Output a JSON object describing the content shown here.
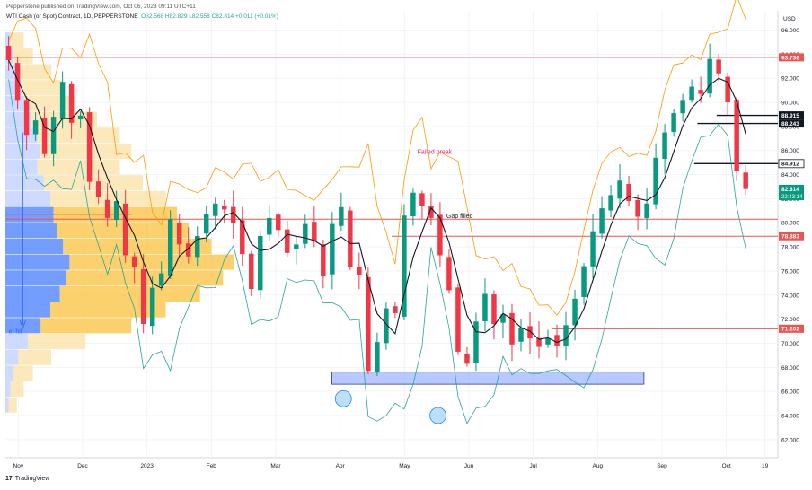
{
  "header": {
    "published": "Pepperstone published on TradingView.com, Oct 06, 2023 09:11 UTC+11",
    "symbol": "WTI Cash (or Spot) Contract, 1D, PEPPERSTONE",
    "ohlc": "O82.568 H82.829 L82.558 C82.814 +0.011 (+0.01%)"
  },
  "footer": {
    "brand": "TradingView",
    "logo_glyph": "17"
  },
  "chart_data": {
    "type": "candlestick",
    "currency": "USD",
    "y_ticks": [
      "96.000",
      "94.000",
      "92.000",
      "90.000",
      "88.000",
      "86.000",
      "84.000",
      "82.000",
      "80.000",
      "78.000",
      "76.000",
      "74.000",
      "72.000",
      "70.000",
      "68.000",
      "66.000",
      "64.000",
      "62.000"
    ],
    "ylim": [
      60.5,
      97.6
    ],
    "x_ticks": [
      {
        "label": "Nov",
        "t": 0.2
      },
      {
        "label": "Dec",
        "t": 1.2
      },
      {
        "label": "2023",
        "t": 2.2
      },
      {
        "label": "Feb",
        "t": 3.2
      },
      {
        "label": "Mar",
        "t": 4.2
      },
      {
        "label": "Apr",
        "t": 5.2
      },
      {
        "label": "May",
        "t": 6.2
      },
      {
        "label": "Jun",
        "t": 7.2
      },
      {
        "label": "Jul",
        "t": 8.2
      },
      {
        "label": "Aug",
        "t": 9.2
      },
      {
        "label": "Sep",
        "t": 10.2
      },
      {
        "label": "Oct",
        "t": 11.2
      },
      {
        "label": "19",
        "t": 11.8
      }
    ],
    "price_labels": [
      {
        "value": 93.736,
        "text": "93.736",
        "color": "#ef5350",
        "kind": "tag"
      },
      {
        "value": 88.915,
        "text": "88.915",
        "color": "#131722",
        "kind": "tag"
      },
      {
        "value": 88.243,
        "text": "88.243",
        "color": "#131722",
        "kind": "tag"
      },
      {
        "value": 84.912,
        "text": "84.912",
        "color": "#131722",
        "kind": "outline"
      },
      {
        "value": 82.814,
        "text": "82.814",
        "color": "#089981",
        "kind": "last",
        "countdown": "22:43:14"
      },
      {
        "value": 78.883,
        "text": "78.883",
        "color": "#ef5350",
        "kind": "tag"
      },
      {
        "value": 71.202,
        "text": "71.202",
        "color": "#ef5350",
        "kind": "tag"
      }
    ],
    "annotations": [
      {
        "text": "Failed break",
        "color": "#e91e63",
        "x": 6.4,
        "y": 85.7
      },
      {
        "text": "Gap filled",
        "color": "#131722",
        "x": 6.85,
        "y": 80.4
      },
      {
        "text": "et hit",
        "color": "#2962ff",
        "x": 0.05,
        "y": 70.8
      }
    ],
    "h_lines": [
      {
        "value": 93.736,
        "color": "#ef5350",
        "x_from": 0.0
      },
      {
        "value": 80.3,
        "color": "#ef5350",
        "x_from": 0.0
      },
      {
        "value": 78.883,
        "color": "#ef5350",
        "x_from": 6.0
      },
      {
        "value": 71.202,
        "color": "#ef5350",
        "x_from": 8.5
      },
      {
        "value": 88.915,
        "color": "#131722",
        "x_from": 11.05
      },
      {
        "value": 88.243,
        "color": "#131722",
        "x_from": 10.75
      },
      {
        "value": 84.912,
        "color": "#131722",
        "x_from": 10.7
      }
    ],
    "zone": {
      "x0": 5.07,
      "x1": 9.92,
      "y0": 66.6,
      "y1": 67.6,
      "color": "#7b9cff"
    },
    "circles": [
      {
        "x": 5.25,
        "y": 65.4
      },
      {
        "x": 6.72,
        "y": 64.0
      }
    ],
    "series": [
      {
        "name": "price",
        "closes": [
          93.5,
          90.2,
          87.3,
          88.5,
          85.7,
          88.8,
          91.7,
          88.3,
          88.9,
          83.4,
          82.1,
          80.4,
          81.8,
          77.3,
          76.3,
          71.6,
          74.6,
          75.8,
          80.3,
          78.2,
          77.2,
          78.9,
          80.7,
          81.6,
          81.1,
          80.0,
          77.4,
          74.5,
          78.9,
          80.4,
          79.4,
          77.5,
          78.2,
          79.9,
          78.5,
          75.6,
          79.9,
          81.3,
          76.3,
          75.7,
          67.7,
          70.1,
          72.9,
          72.5,
          80.6,
          82.5,
          81.4,
          80.4,
          77.3,
          74.4,
          69.3,
          68.3,
          71.8,
          74.1,
          71.6,
          72.4,
          69.9,
          71.3,
          70.4,
          69.7,
          70.4,
          69.8,
          71.5,
          73.7,
          76.4,
          79.3,
          81.2,
          82.3,
          83.5,
          81.8,
          80.5,
          81.6,
          85.4,
          87.5,
          89.1,
          90.2,
          91.3,
          90.7,
          93.6,
          92.4,
          90.0,
          84.3,
          82.8
        ]
      }
    ]
  }
}
